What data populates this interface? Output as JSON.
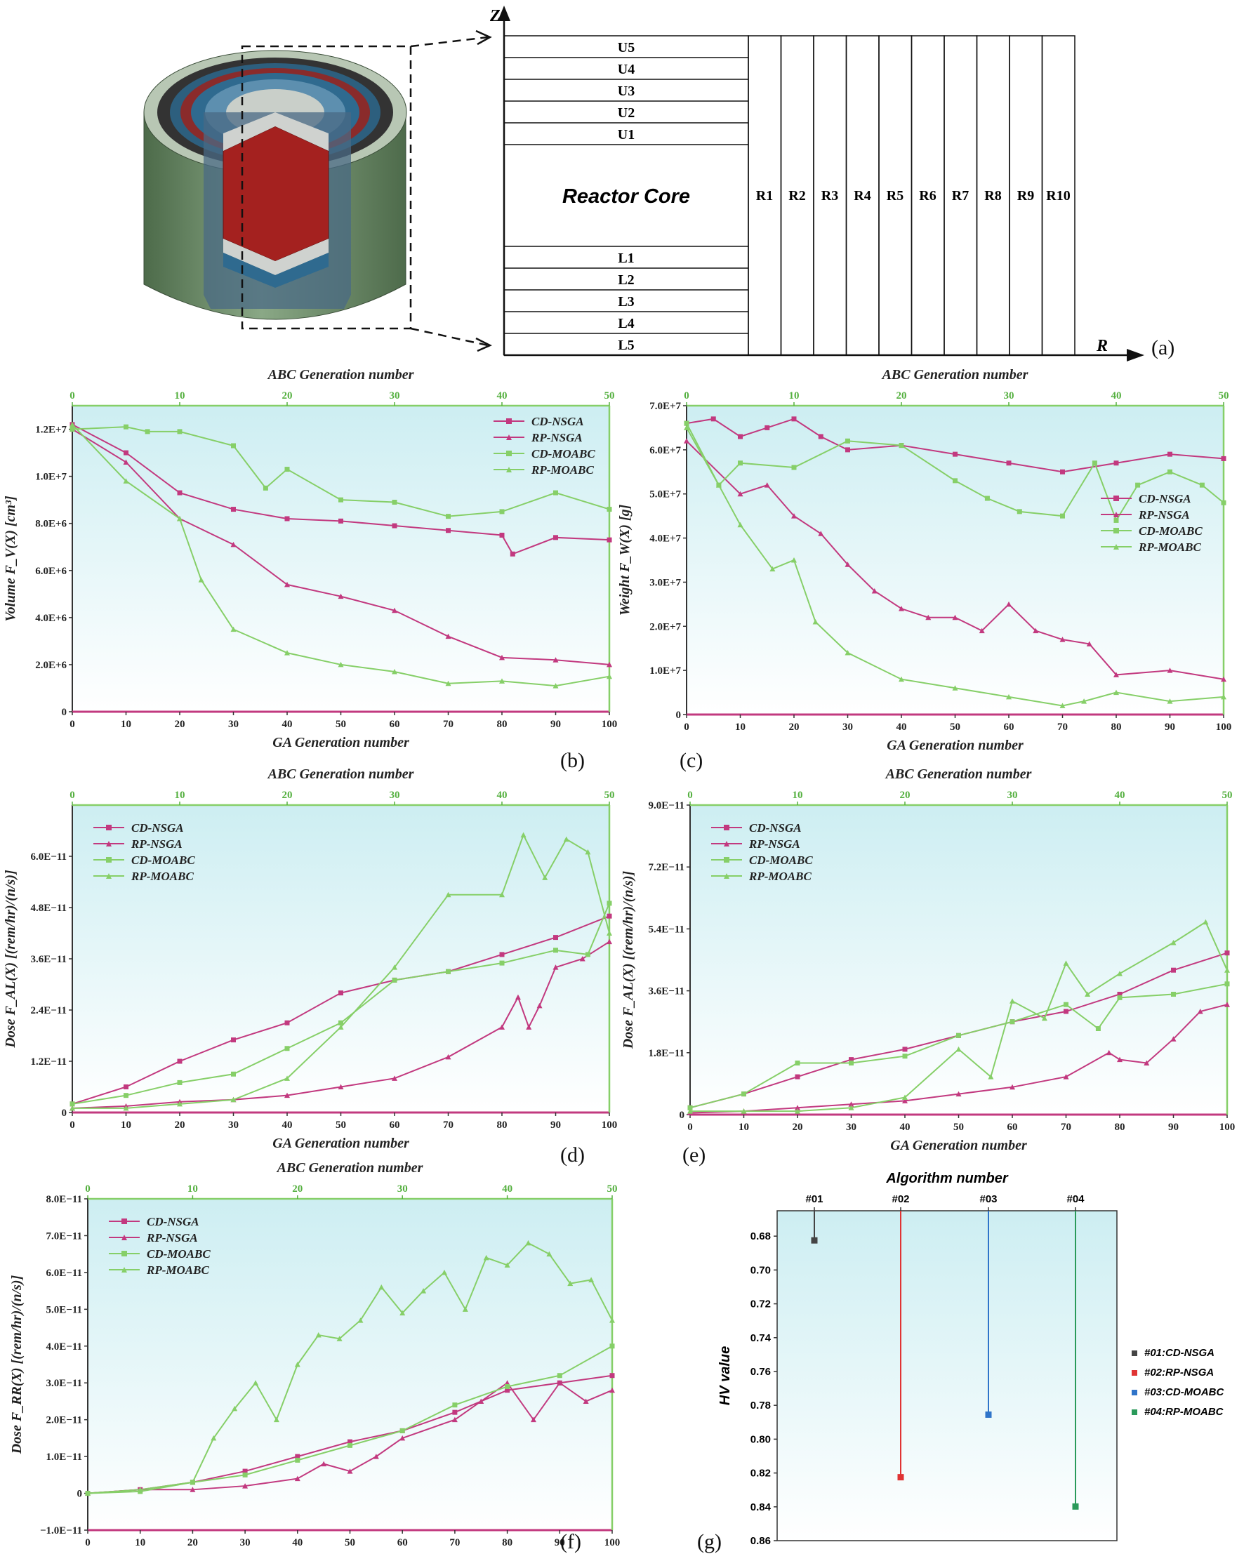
{
  "colors": {
    "nsga": "#c2397f",
    "moabc": "#86cf68",
    "alg1": "#444444",
    "alg2": "#e03333",
    "alg3": "#2f74c9",
    "alg4": "#2a9a5a"
  },
  "schematic": {
    "upper_layers": [
      "U5",
      "U4",
      "U3",
      "U2",
      "U1"
    ],
    "core_label": "Reactor Core",
    "lower_layers": [
      "L1",
      "L2",
      "L3",
      "L4",
      "L5"
    ],
    "radial_layers": [
      "R1",
      "R2",
      "R3",
      "R4",
      "R5",
      "R6",
      "R7",
      "R8",
      "R9",
      "R10"
    ],
    "z_label": "Z",
    "r_label": "R",
    "panel_label": "(a)"
  },
  "chart_data": [
    {
      "id": "b",
      "type": "line",
      "panel_label": "(b)",
      "xlabel": "GA Generation number",
      "x2label": "ABC Generation number",
      "ylabel": "Volume F_V(X) [cm³]",
      "xlim": [
        0,
        100
      ],
      "x2lim": [
        0,
        50
      ],
      "ylim": [
        0,
        13000000
      ],
      "xticks": [
        0,
        10,
        20,
        30,
        40,
        50,
        60,
        70,
        80,
        90,
        100
      ],
      "x2ticks": [
        0,
        10,
        20,
        30,
        40,
        50
      ],
      "yticks": [
        0,
        2000000,
        4000000,
        6000000,
        8000000,
        10000000,
        12000000
      ],
      "ytick_labels": [
        "0",
        "2.0E+6",
        "4.0E+6",
        "6.0E+6",
        "8.0E+6",
        "1.0E+7",
        "1.2E+7"
      ],
      "legend_position": "top-right",
      "series": [
        {
          "name": "CD-NSGA",
          "axis": "bottom",
          "marker": "square",
          "x": [
            0,
            10,
            20,
            30,
            40,
            50,
            60,
            70,
            80,
            82,
            90,
            100
          ],
          "y": [
            12200000,
            11000000,
            9300000,
            8600000,
            8200000,
            8100000,
            7900000,
            7700000,
            7500000,
            6700000,
            7400000,
            7300000
          ]
        },
        {
          "name": "RP-NSGA",
          "axis": "bottom",
          "marker": "triangle",
          "x": [
            0,
            10,
            20,
            30,
            40,
            50,
            60,
            70,
            80,
            90,
            100
          ],
          "y": [
            12000000,
            10600000,
            8200000,
            7100000,
            5400000,
            4900000,
            4300000,
            3200000,
            2300000,
            2200000,
            2000000
          ]
        },
        {
          "name": "CD-MOABC",
          "axis": "top",
          "marker": "square",
          "x": [
            0,
            5,
            7,
            10,
            15,
            18,
            20,
            25,
            30,
            35,
            40,
            45,
            50
          ],
          "y": [
            12000000,
            12100000,
            11900000,
            11900000,
            11300000,
            9500000,
            10300000,
            9000000,
            8900000,
            8300000,
            8500000,
            9300000,
            8600000
          ]
        },
        {
          "name": "RP-MOABC",
          "axis": "top",
          "marker": "triangle",
          "x": [
            0,
            5,
            10,
            12,
            15,
            20,
            25,
            30,
            35,
            40,
            45,
            50
          ],
          "y": [
            12200000,
            9800000,
            8200000,
            5600000,
            3500000,
            2500000,
            2000000,
            1700000,
            1200000,
            1300000,
            1100000,
            1500000
          ]
        }
      ]
    },
    {
      "id": "c",
      "type": "line",
      "panel_label": "(c)",
      "xlabel": "GA Generation number",
      "x2label": "ABC Generation number",
      "ylabel": "Weight F_W(X) [g]",
      "xlim": [
        0,
        100
      ],
      "x2lim": [
        0,
        50
      ],
      "ylim": [
        0,
        70000000
      ],
      "xticks": [
        0,
        10,
        20,
        30,
        40,
        50,
        60,
        70,
        80,
        90,
        100
      ],
      "x2ticks": [
        0,
        10,
        20,
        30,
        40,
        50
      ],
      "yticks": [
        0,
        10000000,
        20000000,
        30000000,
        40000000,
        50000000,
        60000000,
        70000000
      ],
      "ytick_labels": [
        "0",
        "1.0E+7",
        "2.0E+7",
        "3.0E+7",
        "4.0E+7",
        "5.0E+7",
        "6.0E+7",
        "7.0E+7"
      ],
      "legend_position": "center-right",
      "series": [
        {
          "name": "CD-NSGA",
          "axis": "bottom",
          "marker": "square",
          "x": [
            0,
            5,
            10,
            15,
            20,
            25,
            30,
            40,
            50,
            60,
            70,
            80,
            90,
            100
          ],
          "y": [
            66000000,
            67000000,
            63000000,
            65000000,
            67000000,
            63000000,
            60000000,
            61000000,
            59000000,
            57000000,
            55000000,
            57000000,
            59000000,
            58000000
          ]
        },
        {
          "name": "RP-NSGA",
          "axis": "bottom",
          "marker": "triangle",
          "x": [
            0,
            10,
            15,
            20,
            25,
            30,
            35,
            40,
            45,
            50,
            55,
            60,
            65,
            70,
            75,
            80,
            90,
            100
          ],
          "y": [
            62000000,
            50000000,
            52000000,
            45000000,
            41000000,
            34000000,
            28000000,
            24000000,
            22000000,
            22000000,
            19000000,
            25000000,
            19000000,
            17000000,
            16000000,
            9000000,
            10000000,
            8000000
          ]
        },
        {
          "name": "CD-MOABC",
          "axis": "top",
          "marker": "square",
          "x": [
            0,
            3,
            5,
            10,
            15,
            20,
            25,
            28,
            31,
            35,
            38,
            40,
            42,
            45,
            48,
            50
          ],
          "y": [
            66000000,
            52000000,
            57000000,
            56000000,
            62000000,
            61000000,
            53000000,
            49000000,
            46000000,
            45000000,
            57000000,
            44000000,
            52000000,
            55000000,
            52000000,
            48000000
          ]
        },
        {
          "name": "RP-MOABC",
          "axis": "top",
          "marker": "triangle",
          "x": [
            0,
            3,
            5,
            8,
            10,
            12,
            15,
            20,
            25,
            30,
            35,
            37,
            40,
            45,
            50
          ],
          "y": [
            65000000,
            52000000,
            43000000,
            33000000,
            35000000,
            21000000,
            14000000,
            8000000,
            6000000,
            4000000,
            2000000,
            3000000,
            5000000,
            3000000,
            4000000
          ]
        }
      ]
    },
    {
      "id": "d",
      "type": "line",
      "panel_label": "(d)",
      "xlabel": "GA Generation number",
      "x2label": "ABC Generation number",
      "ylabel": "Dose F_AL(X) [(rem/hr)/(n/s)]",
      "xlim": [
        0,
        100
      ],
      "x2lim": [
        0,
        50
      ],
      "ylim": [
        0,
        7.2e-11
      ],
      "xticks": [
        0,
        10,
        20,
        30,
        40,
        50,
        60,
        70,
        80,
        90,
        100
      ],
      "x2ticks": [
        0,
        10,
        20,
        30,
        40,
        50
      ],
      "yticks": [
        0,
        1.2e-11,
        2.4e-11,
        3.6e-11,
        4.8e-11,
        6e-11
      ],
      "ytick_labels": [
        "0",
        "1.2E−11",
        "2.4E−11",
        "3.6E−11",
        "4.8E−11",
        "6.0E−11"
      ],
      "legend_position": "top-left",
      "series": [
        {
          "name": "CD-NSGA",
          "axis": "bottom",
          "marker": "square",
          "x": [
            0,
            10,
            20,
            30,
            40,
            50,
            60,
            70,
            80,
            90,
            100
          ],
          "y": [
            2e-12,
            6e-12,
            1.2e-11,
            1.7e-11,
            2.1e-11,
            2.8e-11,
            3.1e-11,
            3.3e-11,
            3.7e-11,
            4.1e-11,
            4.6e-11
          ]
        },
        {
          "name": "RP-NSGA",
          "axis": "bottom",
          "marker": "triangle",
          "x": [
            0,
            10,
            20,
            30,
            40,
            50,
            60,
            70,
            80,
            83,
            85,
            87,
            90,
            95,
            100
          ],
          "y": [
            1e-12,
            1.5e-12,
            2.5e-12,
            3e-12,
            4e-12,
            6e-12,
            8e-12,
            1.3e-11,
            2e-11,
            2.7e-11,
            2e-11,
            2.5e-11,
            3.4e-11,
            3.6e-11,
            4e-11
          ]
        },
        {
          "name": "CD-MOABC",
          "axis": "top",
          "marker": "square",
          "x": [
            0,
            5,
            10,
            15,
            20,
            25,
            30,
            35,
            40,
            45,
            48,
            50
          ],
          "y": [
            2e-12,
            4e-12,
            7e-12,
            9e-12,
            1.5e-11,
            2.1e-11,
            3.1e-11,
            3.3e-11,
            3.5e-11,
            3.8e-11,
            3.7e-11,
            4.9e-11
          ]
        },
        {
          "name": "RP-MOABC",
          "axis": "top",
          "marker": "triangle",
          "x": [
            0,
            5,
            10,
            15,
            20,
            25,
            30,
            35,
            40,
            42,
            44,
            46,
            48,
            50
          ],
          "y": [
            1e-12,
            1e-12,
            2e-12,
            3e-12,
            8e-12,
            2e-11,
            3.4e-11,
            5.1e-11,
            5.1e-11,
            6.5e-11,
            5.5e-11,
            6.4e-11,
            6.1e-11,
            4.2e-11
          ]
        }
      ]
    },
    {
      "id": "e",
      "type": "line",
      "panel_label": "(e)",
      "xlabel": "GA Generation number",
      "x2label": "ABC Generation number",
      "ylabel": "Dose F_AL(X) [(rem/hr)/(n/s)]",
      "xlim": [
        0,
        100
      ],
      "x2lim": [
        0,
        50
      ],
      "ylim": [
        0,
        9e-11
      ],
      "xticks": [
        0,
        10,
        20,
        30,
        40,
        50,
        60,
        70,
        80,
        90,
        100
      ],
      "x2ticks": [
        0,
        10,
        20,
        30,
        40,
        50
      ],
      "yticks": [
        0,
        1.8e-11,
        3.6e-11,
        5.4e-11,
        7.2e-11,
        9e-11
      ],
      "ytick_labels": [
        "0",
        "1.8E−11",
        "3.6E−11",
        "5.4E−11",
        "7.2E−11",
        "9.0E−11"
      ],
      "legend_position": "top-left",
      "series": [
        {
          "name": "CD-NSGA",
          "axis": "bottom",
          "marker": "square",
          "x": [
            0,
            10,
            20,
            30,
            40,
            50,
            60,
            70,
            80,
            90,
            100
          ],
          "y": [
            2e-12,
            6e-12,
            1.1e-11,
            1.6e-11,
            1.9e-11,
            2.3e-11,
            2.7e-11,
            3e-11,
            3.5e-11,
            4.2e-11,
            4.7e-11
          ]
        },
        {
          "name": "RP-NSGA",
          "axis": "bottom",
          "marker": "triangle",
          "x": [
            0,
            10,
            20,
            30,
            40,
            50,
            60,
            70,
            78,
            80,
            85,
            90,
            95,
            100
          ],
          "y": [
            5e-13,
            1e-12,
            2e-12,
            3e-12,
            4e-12,
            6e-12,
            8e-12,
            1.1e-11,
            1.8e-11,
            1.6e-11,
            1.5e-11,
            2.2e-11,
            3e-11,
            3.2e-11
          ]
        },
        {
          "name": "CD-MOABC",
          "axis": "top",
          "marker": "square",
          "x": [
            0,
            5,
            10,
            15,
            20,
            25,
            30,
            35,
            38,
            40,
            45,
            50
          ],
          "y": [
            2e-12,
            6e-12,
            1.5e-11,
            1.5e-11,
            1.7e-11,
            2.3e-11,
            2.7e-11,
            3.2e-11,
            2.5e-11,
            3.4e-11,
            3.5e-11,
            3.8e-11
          ]
        },
        {
          "name": "RP-MOABC",
          "axis": "top",
          "marker": "triangle",
          "x": [
            0,
            5,
            10,
            15,
            20,
            25,
            28,
            30,
            33,
            35,
            37,
            40,
            45,
            48,
            50
          ],
          "y": [
            1e-12,
            1e-12,
            1e-12,
            2e-12,
            5e-12,
            1.9e-11,
            1.1e-11,
            3.3e-11,
            2.8e-11,
            4.4e-11,
            3.5e-11,
            4.1e-11,
            5e-11,
            5.6e-11,
            4.2e-11
          ]
        }
      ]
    },
    {
      "id": "f",
      "type": "line",
      "panel_label": "(f)",
      "xlabel": "GA Generation number",
      "x2label": "ABC Generation number",
      "ylabel": "Dose F_RR(X) [(rem/hr)/(n/s)]",
      "xlim": [
        0,
        100
      ],
      "x2lim": [
        0,
        50
      ],
      "ylim": [
        -1e-11,
        8e-11
      ],
      "xticks": [
        0,
        10,
        20,
        30,
        40,
        50,
        60,
        70,
        80,
        90,
        100
      ],
      "x2ticks": [
        0,
        10,
        20,
        30,
        40,
        50
      ],
      "yticks": [
        -1e-11,
        0,
        1e-11,
        2e-11,
        3e-11,
        4e-11,
        5e-11,
        6e-11,
        7e-11,
        8e-11
      ],
      "ytick_labels": [
        "−1.0E−11",
        "0",
        "1.0E−11",
        "2.0E−11",
        "3.0E−11",
        "4.0E−11",
        "5.0E−11",
        "6.0E−11",
        "7.0E−11",
        "8.0E−11"
      ],
      "legend_position": "top-left",
      "series": [
        {
          "name": "CD-NSGA",
          "axis": "bottom",
          "marker": "square",
          "x": [
            0,
            10,
            20,
            30,
            40,
            50,
            60,
            70,
            80,
            90,
            100
          ],
          "y": [
            0,
            1e-12,
            3e-12,
            6e-12,
            1e-11,
            1.4e-11,
            1.7e-11,
            2.2e-11,
            2.8e-11,
            3e-11,
            3.2e-11
          ]
        },
        {
          "name": "RP-NSGA",
          "axis": "bottom",
          "marker": "triangle",
          "x": [
            0,
            10,
            20,
            30,
            40,
            45,
            50,
            55,
            60,
            70,
            75,
            80,
            85,
            90,
            95,
            100
          ],
          "y": [
            0,
            1e-12,
            1e-12,
            2e-12,
            4e-12,
            8e-12,
            6e-12,
            1e-11,
            1.5e-11,
            2e-11,
            2.5e-11,
            3e-11,
            2e-11,
            3e-11,
            2.5e-11,
            2.8e-11
          ]
        },
        {
          "name": "CD-MOABC",
          "axis": "top",
          "marker": "square",
          "x": [
            0,
            5,
            10,
            15,
            20,
            25,
            30,
            35,
            40,
            45,
            50
          ],
          "y": [
            0,
            5e-13,
            3e-12,
            5e-12,
            9e-12,
            1.3e-11,
            1.7e-11,
            2.4e-11,
            2.9e-11,
            3.2e-11,
            4e-11
          ]
        },
        {
          "name": "RP-MOABC",
          "axis": "top",
          "marker": "triangle",
          "x": [
            0,
            5,
            10,
            12,
            14,
            16,
            18,
            20,
            22,
            24,
            26,
            28,
            30,
            32,
            34,
            36,
            38,
            40,
            42,
            44,
            46,
            48,
            50
          ],
          "y": [
            0,
            1e-12,
            3e-12,
            1.5e-11,
            2.3e-11,
            3e-11,
            2e-11,
            3.5e-11,
            4.3e-11,
            4.2e-11,
            4.7e-11,
            5.6e-11,
            4.9e-11,
            5.5e-11,
            6e-11,
            5e-11,
            6.4e-11,
            6.2e-11,
            6.8e-11,
            6.5e-11,
            5.7e-11,
            5.8e-11,
            4.7e-11
          ]
        }
      ]
    },
    {
      "id": "g",
      "type": "bar",
      "panel_label": "(g)",
      "title": "Algorithm number",
      "ylabel": "HV value",
      "categories": [
        "#01",
        "#02",
        "#03",
        "#04"
      ],
      "values": [
        0.6825,
        0.8225,
        0.7855,
        0.8398
      ],
      "ylim": [
        0.665,
        0.86
      ],
      "y_inverted": true,
      "yticks": [
        0.68,
        0.7,
        0.72,
        0.74,
        0.76,
        0.78,
        0.8,
        0.82,
        0.84,
        0.86
      ],
      "ytick_labels": [
        "0.68",
        "0.70",
        "0.72",
        "0.74",
        "0.76",
        "0.78",
        "0.80",
        "0.82",
        "0.84",
        "0.86"
      ],
      "legend": [
        "#01:CD-NSGA",
        "#02:RP-NSGA",
        "#03:CD-MOABC",
        "#04:RP-MOABC"
      ],
      "legend_position": "right"
    }
  ]
}
